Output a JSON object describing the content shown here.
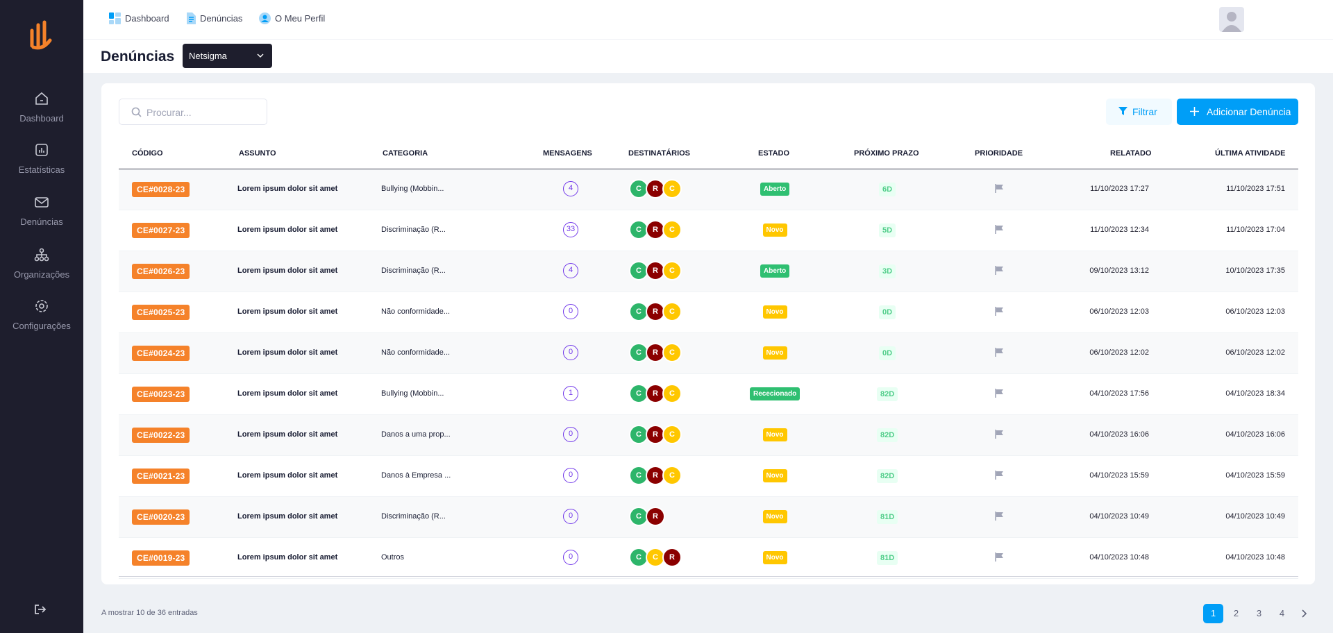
{
  "sidebar": {
    "items": [
      {
        "label": "Dashboard",
        "icon": "home-icon"
      },
      {
        "label": "Estatísticas",
        "icon": "chart-icon"
      },
      {
        "label": "Denúncias",
        "icon": "envelope-icon"
      },
      {
        "label": "Organizações",
        "icon": "hierarchy-icon"
      },
      {
        "label": "Configurações",
        "icon": "gear-icon"
      }
    ],
    "logout_icon": "logout-icon"
  },
  "topbar": {
    "links": [
      {
        "label": "Dashboard",
        "icon": "dashboard-icon"
      },
      {
        "label": "Denúncias",
        "icon": "document-icon"
      },
      {
        "label": "O Meu Perfil",
        "icon": "user-icon"
      }
    ]
  },
  "header": {
    "title": "Denúncias",
    "organization": "Netsigma"
  },
  "toolbar": {
    "search_placeholder": "Procurar...",
    "filter_label": "Filtrar",
    "add_label": "Adicionar Denúncia"
  },
  "table": {
    "columns": [
      "Código",
      "Assunto",
      "Categoria",
      "Mensagens",
      "Destinatários",
      "Estado",
      "Próximo Prazo",
      "Prioridade",
      "Relatado",
      "Última Atividade"
    ],
    "rows": [
      {
        "code": "CE#0028-23",
        "subject": "Lorem ipsum dolor sit amet",
        "category": "Bullying (Mobbin...",
        "messages": "4",
        "recipients": [
          {
            "letter": "C",
            "color": "green"
          },
          {
            "letter": "R",
            "color": "red"
          },
          {
            "letter": "C",
            "color": "yellow"
          }
        ],
        "state": "Aberto",
        "state_color": "green",
        "deadline": "6D",
        "reported": "11/10/2023 17:27",
        "activity": "11/10/2023 17:51"
      },
      {
        "code": "CE#0027-23",
        "subject": "Lorem ipsum dolor sit amet",
        "category": "Discriminação (R...",
        "messages": "33",
        "recipients": [
          {
            "letter": "C",
            "color": "green"
          },
          {
            "letter": "R",
            "color": "red"
          },
          {
            "letter": "C",
            "color": "yellow"
          }
        ],
        "state": "Novo",
        "state_color": "yellow",
        "deadline": "5D",
        "reported": "11/10/2023 12:34",
        "activity": "11/10/2023 17:04"
      },
      {
        "code": "CE#0026-23",
        "subject": "Lorem ipsum dolor sit amet",
        "category": "Discriminação (R...",
        "messages": "4",
        "recipients": [
          {
            "letter": "C",
            "color": "green"
          },
          {
            "letter": "R",
            "color": "red"
          },
          {
            "letter": "C",
            "color": "yellow"
          }
        ],
        "state": "Aberto",
        "state_color": "green",
        "deadline": "3D",
        "reported": "09/10/2023 13:12",
        "activity": "10/10/2023 17:35"
      },
      {
        "code": "CE#0025-23",
        "subject": "Lorem ipsum dolor sit amet",
        "category": "Não conformidade...",
        "messages": "0",
        "recipients": [
          {
            "letter": "C",
            "color": "green"
          },
          {
            "letter": "R",
            "color": "red"
          },
          {
            "letter": "C",
            "color": "yellow"
          }
        ],
        "state": "Novo",
        "state_color": "yellow",
        "deadline": "0D",
        "reported": "06/10/2023 12:03",
        "activity": "06/10/2023 12:03"
      },
      {
        "code": "CE#0024-23",
        "subject": "Lorem ipsum dolor sit amet",
        "category": "Não conformidade...",
        "messages": "0",
        "recipients": [
          {
            "letter": "C",
            "color": "green"
          },
          {
            "letter": "R",
            "color": "red"
          },
          {
            "letter": "C",
            "color": "yellow"
          }
        ],
        "state": "Novo",
        "state_color": "yellow",
        "deadline": "0D",
        "reported": "06/10/2023 12:02",
        "activity": "06/10/2023 12:02"
      },
      {
        "code": "CE#0023-23",
        "subject": "Lorem ipsum dolor sit amet",
        "category": "Bullying (Mobbin...",
        "messages": "1",
        "recipients": [
          {
            "letter": "C",
            "color": "green"
          },
          {
            "letter": "R",
            "color": "red"
          },
          {
            "letter": "C",
            "color": "yellow"
          }
        ],
        "state": "Rececionado",
        "state_color": "green",
        "deadline": "82D",
        "reported": "04/10/2023 17:56",
        "activity": "04/10/2023 18:34"
      },
      {
        "code": "CE#0022-23",
        "subject": "Lorem ipsum dolor sit amet",
        "category": "Danos a uma prop...",
        "messages": "0",
        "recipients": [
          {
            "letter": "C",
            "color": "green"
          },
          {
            "letter": "R",
            "color": "red"
          },
          {
            "letter": "C",
            "color": "yellow"
          }
        ],
        "state": "Novo",
        "state_color": "yellow",
        "deadline": "82D",
        "reported": "04/10/2023 16:06",
        "activity": "04/10/2023 16:06"
      },
      {
        "code": "CE#0021-23",
        "subject": "Lorem ipsum dolor sit amet",
        "category": "Danos à Empresa ...",
        "messages": "0",
        "recipients": [
          {
            "letter": "C",
            "color": "green"
          },
          {
            "letter": "R",
            "color": "red"
          },
          {
            "letter": "C",
            "color": "yellow"
          }
        ],
        "state": "Novo",
        "state_color": "yellow",
        "deadline": "82D",
        "reported": "04/10/2023 15:59",
        "activity": "04/10/2023 15:59"
      },
      {
        "code": "CE#0020-23",
        "subject": "Lorem ipsum dolor sit amet",
        "category": "Discriminação (R...",
        "messages": "0",
        "recipients": [
          {
            "letter": "C",
            "color": "green"
          },
          {
            "letter": "R",
            "color": "red"
          }
        ],
        "state": "Novo",
        "state_color": "yellow",
        "deadline": "81D",
        "reported": "04/10/2023 10:49",
        "activity": "04/10/2023 10:49"
      },
      {
        "code": "CE#0019-23",
        "subject": "Lorem ipsum dolor sit amet",
        "category": "Outros",
        "messages": "0",
        "recipients": [
          {
            "letter": "C",
            "color": "green"
          },
          {
            "letter": "C",
            "color": "yellow"
          },
          {
            "letter": "R",
            "color": "red"
          }
        ],
        "state": "Novo",
        "state_color": "yellow",
        "deadline": "81D",
        "reported": "04/10/2023 10:48",
        "activity": "04/10/2023 10:48"
      }
    ]
  },
  "footer": {
    "entries_text": "A mostrar 10 de 36 entradas",
    "pages": [
      "1",
      "2",
      "3",
      "4"
    ],
    "current_page": "1"
  },
  "colors": {
    "sidebar": "#1e1e2d",
    "accent": "#009ef7",
    "code_badge": "#f5822a",
    "message_ring": "#7239ea"
  }
}
